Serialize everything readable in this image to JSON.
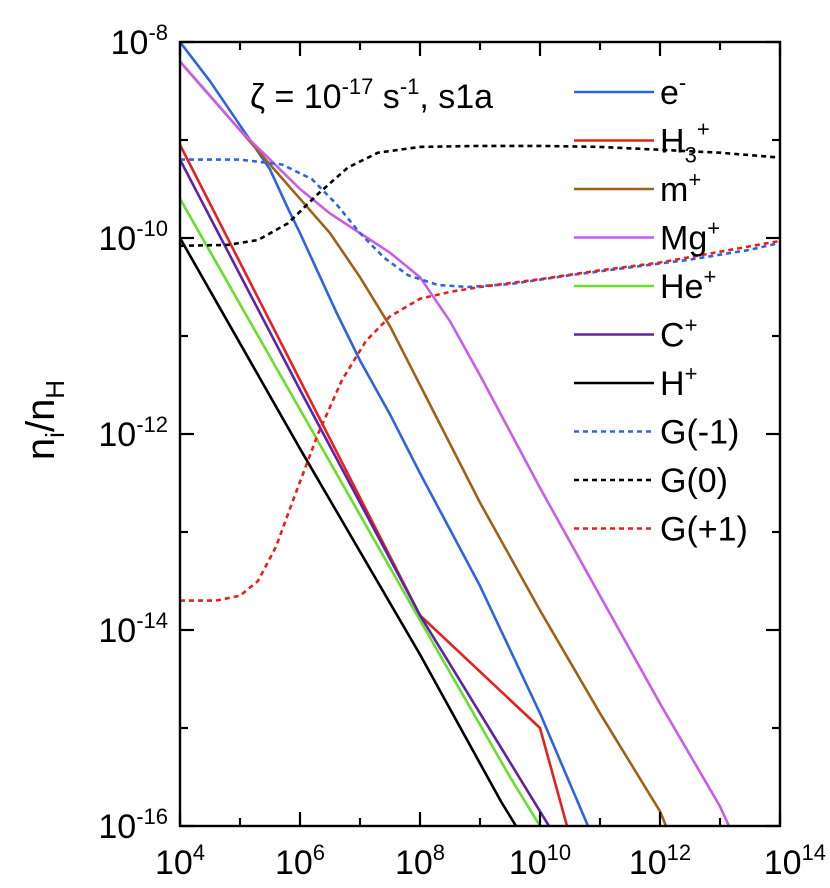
{
  "chart_data": {
    "type": "line",
    "title": {
      "symbol": "ζ",
      "prefix": "ζ = 10",
      "exp": "-17",
      "unit_base": " s",
      "unit_exp": "-1",
      "suffix": ", s1a"
    },
    "xscale": "log",
    "yscale": "log",
    "xlim_exp": [
      4,
      14
    ],
    "ylim_exp": [
      -16,
      -8
    ],
    "xlabel": "",
    "ylabel": {
      "base": "n",
      "sub1": "i",
      "mid": "/n",
      "sub2": "H"
    },
    "x_ticks": [
      {
        "base": "10",
        "exp": "4"
      },
      {
        "base": "10",
        "exp": "6"
      },
      {
        "base": "10",
        "exp": "8"
      },
      {
        "base": "10",
        "exp": "10"
      },
      {
        "base": "10",
        "exp": "12"
      },
      {
        "base": "10",
        "exp": "14"
      }
    ],
    "y_ticks": [
      {
        "base": "10",
        "exp": "-8"
      },
      {
        "base": "10",
        "exp": "-10"
      },
      {
        "base": "10",
        "exp": "-12"
      },
      {
        "base": "10",
        "exp": "-14"
      },
      {
        "base": "10",
        "exp": "-16"
      }
    ],
    "series": [
      {
        "name": "e-",
        "label_base": "e",
        "label_sup": "-",
        "label_sub": "",
        "color": "#2f64e0",
        "dash": false,
        "points": [
          [
            4.0,
            -8.0
          ],
          [
            4.5,
            -8.4
          ],
          [
            5.0,
            -8.85
          ],
          [
            5.5,
            -9.3
          ],
          [
            5.8,
            -9.7
          ],
          [
            6.0,
            -9.95
          ],
          [
            6.3,
            -10.35
          ],
          [
            6.6,
            -10.75
          ],
          [
            7.0,
            -11.25
          ],
          [
            7.5,
            -11.8
          ],
          [
            8.0,
            -12.4
          ],
          [
            9.0,
            -13.55
          ],
          [
            10.0,
            -14.85
          ],
          [
            10.8,
            -16.0
          ]
        ]
      },
      {
        "name": "H3+",
        "label_base": "H",
        "label_sup": "+",
        "label_sub": "3",
        "color": "#e8201a",
        "dash": false,
        "points": [
          [
            4.0,
            -9.05
          ],
          [
            6.0,
            -11.45
          ],
          [
            8.0,
            -13.85
          ],
          [
            10.0,
            -15.0
          ],
          [
            10.45,
            -16.0
          ]
        ]
      },
      {
        "name": "m+",
        "label_base": "m",
        "label_sup": "+",
        "label_sub": "",
        "color": "#a0601a",
        "dash": false,
        "points": [
          [
            4.0,
            -8.2
          ],
          [
            4.5,
            -8.55
          ],
          [
            5.0,
            -8.9
          ],
          [
            5.5,
            -9.25
          ],
          [
            6.0,
            -9.6
          ],
          [
            6.5,
            -9.95
          ],
          [
            7.0,
            -10.4
          ],
          [
            7.5,
            -10.9
          ],
          [
            8.0,
            -11.5
          ],
          [
            9.0,
            -12.7
          ],
          [
            10.0,
            -13.8
          ],
          [
            11.0,
            -14.85
          ],
          [
            12.0,
            -15.85
          ],
          [
            12.1,
            -16.0
          ]
        ]
      },
      {
        "name": "Mg+",
        "label_base": "Mg",
        "label_sup": "+",
        "label_sub": "",
        "color": "#c85ee8",
        "dash": false,
        "points": [
          [
            4.0,
            -8.2
          ],
          [
            4.5,
            -8.55
          ],
          [
            5.0,
            -8.9
          ],
          [
            5.5,
            -9.2
          ],
          [
            6.0,
            -9.5
          ],
          [
            6.5,
            -9.75
          ],
          [
            7.0,
            -9.95
          ],
          [
            7.5,
            -10.15
          ],
          [
            8.0,
            -10.4
          ],
          [
            8.5,
            -10.85
          ],
          [
            9.0,
            -11.4
          ],
          [
            10.0,
            -12.55
          ],
          [
            11.0,
            -13.65
          ],
          [
            12.0,
            -14.75
          ],
          [
            13.0,
            -15.8
          ],
          [
            13.15,
            -16.0
          ]
        ]
      },
      {
        "name": "He+",
        "label_base": "He",
        "label_sup": "+",
        "label_sub": "",
        "color": "#66e02a",
        "dash": false,
        "points": [
          [
            4.0,
            -9.6
          ],
          [
            6.0,
            -11.75
          ],
          [
            8.0,
            -13.9
          ],
          [
            9.5,
            -15.5
          ],
          [
            10.0,
            -16.0
          ]
        ]
      },
      {
        "name": "C+",
        "label_base": "C",
        "label_sup": "+",
        "label_sub": "",
        "color": "#6020a8",
        "dash": false,
        "points": [
          [
            4.0,
            -9.2
          ],
          [
            6.0,
            -11.55
          ],
          [
            8.0,
            -13.85
          ],
          [
            10.0,
            -15.85
          ],
          [
            10.15,
            -16.0
          ]
        ]
      },
      {
        "name": "H+",
        "label_base": "H",
        "label_sup": "+",
        "label_sub": "",
        "color": "#000000",
        "dash": false,
        "points": [
          [
            4.0,
            -10.0
          ],
          [
            6.0,
            -12.15
          ],
          [
            8.0,
            -14.25
          ],
          [
            9.35,
            -15.75
          ],
          [
            9.6,
            -16.0
          ]
        ]
      },
      {
        "name": "G(-1)",
        "label_base": "G(-1)",
        "label_sup": "",
        "label_sub": "",
        "color": "#2f64e0",
        "dash": true,
        "points": [
          [
            4.0,
            -9.2
          ],
          [
            5.0,
            -9.2
          ],
          [
            5.7,
            -9.25
          ],
          [
            6.2,
            -9.4
          ],
          [
            6.6,
            -9.65
          ],
          [
            7.0,
            -9.95
          ],
          [
            7.4,
            -10.2
          ],
          [
            7.8,
            -10.38
          ],
          [
            8.3,
            -10.48
          ],
          [
            8.8,
            -10.5
          ],
          [
            9.5,
            -10.47
          ],
          [
            10.5,
            -10.38
          ],
          [
            11.5,
            -10.3
          ],
          [
            12.5,
            -10.22
          ],
          [
            13.5,
            -10.12
          ],
          [
            14.0,
            -10.05
          ]
        ]
      },
      {
        "name": "G(0)",
        "label_base": "G(0)",
        "label_sup": "",
        "label_sub": "",
        "color": "#000000",
        "dash": true,
        "points": [
          [
            4.0,
            -10.08
          ],
          [
            4.8,
            -10.07
          ],
          [
            5.3,
            -10.02
          ],
          [
            5.8,
            -9.85
          ],
          [
            6.3,
            -9.55
          ],
          [
            6.8,
            -9.28
          ],
          [
            7.3,
            -9.13
          ],
          [
            8.0,
            -9.07
          ],
          [
            9.0,
            -9.06
          ],
          [
            10.0,
            -9.06
          ],
          [
            11.0,
            -9.07
          ],
          [
            12.0,
            -9.1
          ],
          [
            13.0,
            -9.13
          ],
          [
            14.0,
            -9.18
          ]
        ]
      },
      {
        "name": "G(+1)",
        "label_base": "G(+1)",
        "label_sup": "",
        "label_sub": "",
        "color": "#e8201a",
        "dash": true,
        "points": [
          [
            4.0,
            -13.7
          ],
          [
            4.6,
            -13.7
          ],
          [
            5.0,
            -13.65
          ],
          [
            5.3,
            -13.5
          ],
          [
            5.6,
            -13.15
          ],
          [
            5.9,
            -12.65
          ],
          [
            6.3,
            -12.0
          ],
          [
            6.7,
            -11.45
          ],
          [
            7.1,
            -11.05
          ],
          [
            7.5,
            -10.8
          ],
          [
            8.0,
            -10.62
          ],
          [
            8.5,
            -10.55
          ],
          [
            9.0,
            -10.5
          ],
          [
            10.0,
            -10.42
          ],
          [
            11.0,
            -10.33
          ],
          [
            12.0,
            -10.25
          ],
          [
            13.0,
            -10.14
          ],
          [
            14.0,
            -10.03
          ]
        ]
      }
    ]
  }
}
